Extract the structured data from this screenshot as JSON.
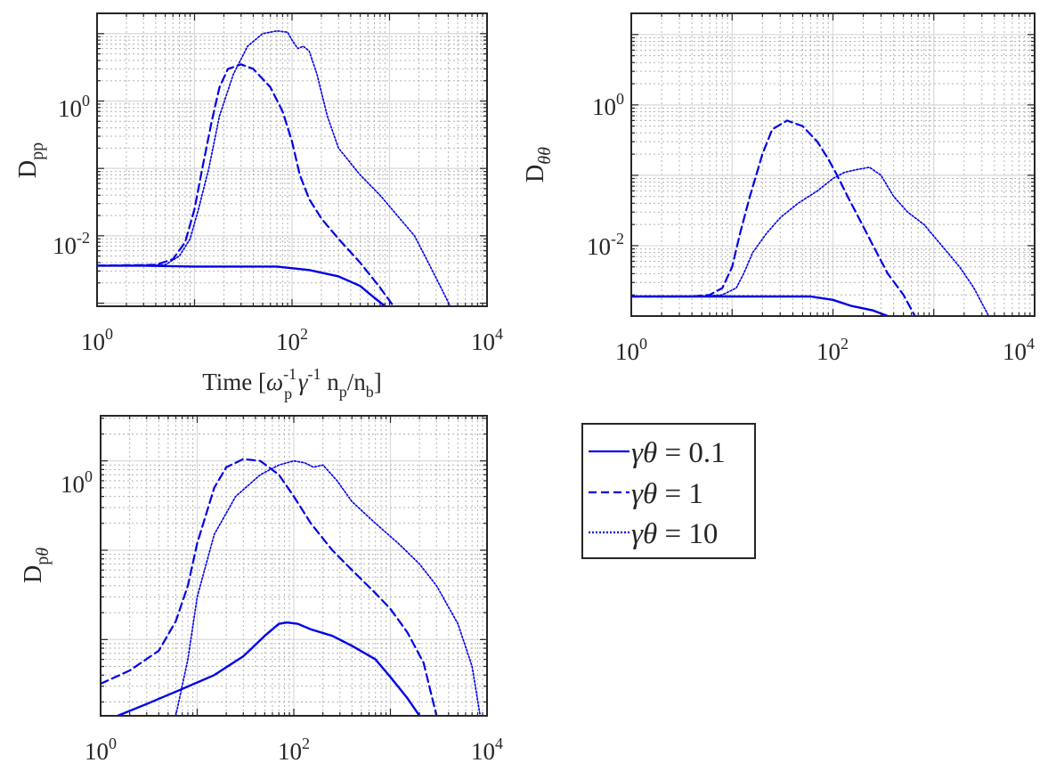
{
  "chart_data": [
    {
      "type": "line",
      "id": "dpp",
      "ylabel": "D_pp",
      "xlabel": "Time [ω_p^-1 γ^-1 n_p/n_b]",
      "xscale": "log",
      "yscale": "log",
      "xlim": [
        1,
        10000
      ],
      "ylim": [
        0.0009,
        20
      ],
      "grid": true,
      "series": [
        {
          "name": "γθ = 0.1",
          "points": [
            [
              1,
              0.0036
            ],
            [
              3,
              0.0036
            ],
            [
              10,
              0.0035
            ],
            [
              30,
              0.0035
            ],
            [
              70,
              0.0035
            ],
            [
              150,
              0.0031
            ],
            [
              300,
              0.0025
            ],
            [
              500,
              0.0018
            ],
            [
              700,
              0.0012
            ],
            [
              900,
              0.0009
            ]
          ]
        },
        {
          "name": "γθ = 1",
          "points": [
            [
              1,
              0.0036
            ],
            [
              4,
              0.0037
            ],
            [
              6,
              0.0045
            ],
            [
              8,
              0.008
            ],
            [
              10,
              0.025
            ],
            [
              12,
              0.1
            ],
            [
              15,
              0.5
            ],
            [
              18,
              1.6
            ],
            [
              22,
              3.0
            ],
            [
              30,
              3.5
            ],
            [
              40,
              3.0
            ],
            [
              60,
              1.6
            ],
            [
              80,
              0.7
            ],
            [
              100,
              0.25
            ],
            [
              120,
              0.08
            ],
            [
              150,
              0.035
            ],
            [
              200,
              0.018
            ],
            [
              300,
              0.009
            ],
            [
              500,
              0.004
            ],
            [
              800,
              0.0017
            ],
            [
              1100,
              0.0009
            ]
          ]
        },
        {
          "name": "γθ = 10",
          "points": [
            [
              1,
              0.0036
            ],
            [
              5,
              0.0037
            ],
            [
              7,
              0.005
            ],
            [
              9,
              0.009
            ],
            [
              11,
              0.025
            ],
            [
              14,
              0.1
            ],
            [
              18,
              0.6
            ],
            [
              25,
              2.5
            ],
            [
              35,
              6.5
            ],
            [
              50,
              10
            ],
            [
              70,
              11
            ],
            [
              90,
              10.5
            ],
            [
              100,
              8
            ],
            [
              115,
              6
            ],
            [
              130,
              6.5
            ],
            [
              150,
              5.5
            ],
            [
              180,
              2.5
            ],
            [
              230,
              0.6
            ],
            [
              300,
              0.2
            ],
            [
              500,
              0.08
            ],
            [
              800,
              0.04
            ],
            [
              1200,
              0.02
            ],
            [
              1800,
              0.01
            ],
            [
              2500,
              0.004
            ],
            [
              3300,
              0.0018
            ],
            [
              4200,
              0.0009
            ]
          ]
        }
      ]
    },
    {
      "type": "line",
      "id": "dthth",
      "ylabel": "D_θθ",
      "xscale": "log",
      "yscale": "log",
      "xlim": [
        1,
        10000
      ],
      "ylim": [
        0.001,
        20
      ],
      "grid": true,
      "series": [
        {
          "name": "γθ = 0.1",
          "points": [
            [
              1,
              0.0019
            ],
            [
              3,
              0.0019
            ],
            [
              10,
              0.0019
            ],
            [
              30,
              0.0019
            ],
            [
              60,
              0.0019
            ],
            [
              100,
              0.0017
            ],
            [
              150,
              0.0014
            ],
            [
              250,
              0.0012
            ],
            [
              350,
              0.001
            ]
          ]
        },
        {
          "name": "γθ = 1",
          "points": [
            [
              1,
              0.0019
            ],
            [
              4,
              0.0019
            ],
            [
              6,
              0.002
            ],
            [
              8,
              0.0025
            ],
            [
              10,
              0.005
            ],
            [
              12,
              0.015
            ],
            [
              15,
              0.05
            ],
            [
              20,
              0.2
            ],
            [
              25,
              0.45
            ],
            [
              35,
              0.6
            ],
            [
              50,
              0.5
            ],
            [
              70,
              0.3
            ],
            [
              90,
              0.17
            ],
            [
              110,
              0.1
            ],
            [
              140,
              0.05
            ],
            [
              180,
              0.025
            ],
            [
              250,
              0.01
            ],
            [
              350,
              0.004
            ],
            [
              500,
              0.002
            ],
            [
              650,
              0.001
            ]
          ]
        },
        {
          "name": "γθ = 10",
          "points": [
            [
              1,
              0.0019
            ],
            [
              5,
              0.0019
            ],
            [
              8,
              0.002
            ],
            [
              11,
              0.0025
            ],
            [
              13,
              0.004
            ],
            [
              16,
              0.008
            ],
            [
              22,
              0.015
            ],
            [
              30,
              0.025
            ],
            [
              45,
              0.04
            ],
            [
              70,
              0.06
            ],
            [
              100,
              0.09
            ],
            [
              130,
              0.11
            ],
            [
              170,
              0.12
            ],
            [
              230,
              0.13
            ],
            [
              300,
              0.1
            ],
            [
              400,
              0.05
            ],
            [
              550,
              0.03
            ],
            [
              800,
              0.02
            ],
            [
              1200,
              0.01
            ],
            [
              1800,
              0.005
            ],
            [
              2500,
              0.0025
            ],
            [
              3500,
              0.001
            ]
          ]
        }
      ]
    },
    {
      "type": "line",
      "id": "dpth",
      "ylabel": "D_pθ",
      "xscale": "log",
      "yscale": "log",
      "xlim": [
        1,
        10000
      ],
      "ylim": [
        0.0014,
        3.2
      ],
      "grid": true,
      "series": [
        {
          "name": "γθ = 0.1",
          "points": [
            [
              1.5,
              0.0014
            ],
            [
              3,
              0.0019
            ],
            [
              7,
              0.0028
            ],
            [
              15,
              0.004
            ],
            [
              30,
              0.0065
            ],
            [
              50,
              0.011
            ],
            [
              70,
              0.015
            ],
            [
              85,
              0.0155
            ],
            [
              110,
              0.015
            ],
            [
              150,
              0.013
            ],
            [
              250,
              0.011
            ],
            [
              400,
              0.0085
            ],
            [
              700,
              0.006
            ],
            [
              1000,
              0.0038
            ],
            [
              1500,
              0.0022
            ],
            [
              2000,
              0.0014
            ]
          ]
        },
        {
          "name": "γθ = 1",
          "points": [
            [
              1,
              0.0032
            ],
            [
              2,
              0.0045
            ],
            [
              4,
              0.0075
            ],
            [
              6,
              0.016
            ],
            [
              8,
              0.04
            ],
            [
              10,
              0.12
            ],
            [
              15,
              0.5
            ],
            [
              20,
              0.85
            ],
            [
              30,
              1.05
            ],
            [
              45,
              1.0
            ],
            [
              70,
              0.7
            ],
            [
              100,
              0.4
            ],
            [
              150,
              0.2
            ],
            [
              250,
              0.1
            ],
            [
              400,
              0.06
            ],
            [
              700,
              0.033
            ],
            [
              1000,
              0.022
            ],
            [
              1500,
              0.012
            ],
            [
              2200,
              0.0055
            ],
            [
              3000,
              0.0014
            ]
          ]
        },
        {
          "name": "γθ = 10",
          "points": [
            [
              6,
              0.0014
            ],
            [
              8,
              0.006
            ],
            [
              10,
              0.03
            ],
            [
              15,
              0.15
            ],
            [
              25,
              0.4
            ],
            [
              45,
              0.7
            ],
            [
              70,
              0.9
            ],
            [
              100,
              1.0
            ],
            [
              130,
              0.95
            ],
            [
              160,
              0.85
            ],
            [
              200,
              0.9
            ],
            [
              280,
              0.6
            ],
            [
              400,
              0.35
            ],
            [
              700,
              0.2
            ],
            [
              1200,
              0.12
            ],
            [
              2000,
              0.07
            ],
            [
              3000,
              0.04
            ],
            [
              5000,
              0.015
            ],
            [
              7000,
              0.005
            ],
            [
              8500,
              0.0014
            ]
          ]
        }
      ]
    }
  ],
  "legend": {
    "entries": [
      "γθ = 0.1",
      "γθ = 1",
      "γθ = 10"
    ],
    "styles": [
      "solid",
      "dashed",
      "dotted"
    ]
  },
  "colors": {
    "line": "#0000e6",
    "axes": "#262626",
    "grid_major": "#d9d9d9",
    "grid_minor": "#b3b3b3"
  },
  "ticks": {
    "x": [
      "10^0",
      "10^2",
      "10^4"
    ]
  }
}
